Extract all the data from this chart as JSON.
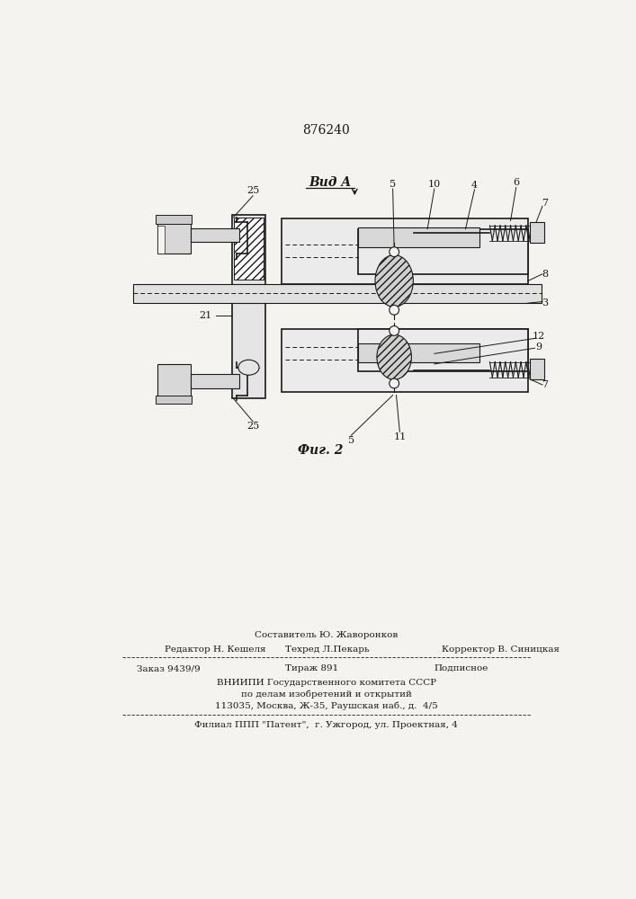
{
  "patent_number": "876240",
  "fig_label": "Фиг. 2",
  "view_label": "Вид A",
  "bg_color": "#f5f3ef",
  "line_color": "#1a1a1a",
  "footer": {
    "sostavitel": "Составитель Ю. Жаворонков",
    "redaktor": "Редактор Н. Кешеля",
    "tehred": "Техред Л.Пекарь",
    "korrektor": "Корректор В. Синицкая",
    "zakaz": "Заказ 9439/9",
    "tirazh": "Тираж 891",
    "podpisnoe": "Подписное",
    "vniipи": "ВНИИПИ Государственного комитета СССР",
    "podel": "по делам изобретений и открытий",
    "addr": "113035, Москва, Ж-35, Раушская наб., д.  4/5",
    "filial": "Филиал ППП \"Патент\",  г. Ужгород, ул. Проектная, 4"
  }
}
